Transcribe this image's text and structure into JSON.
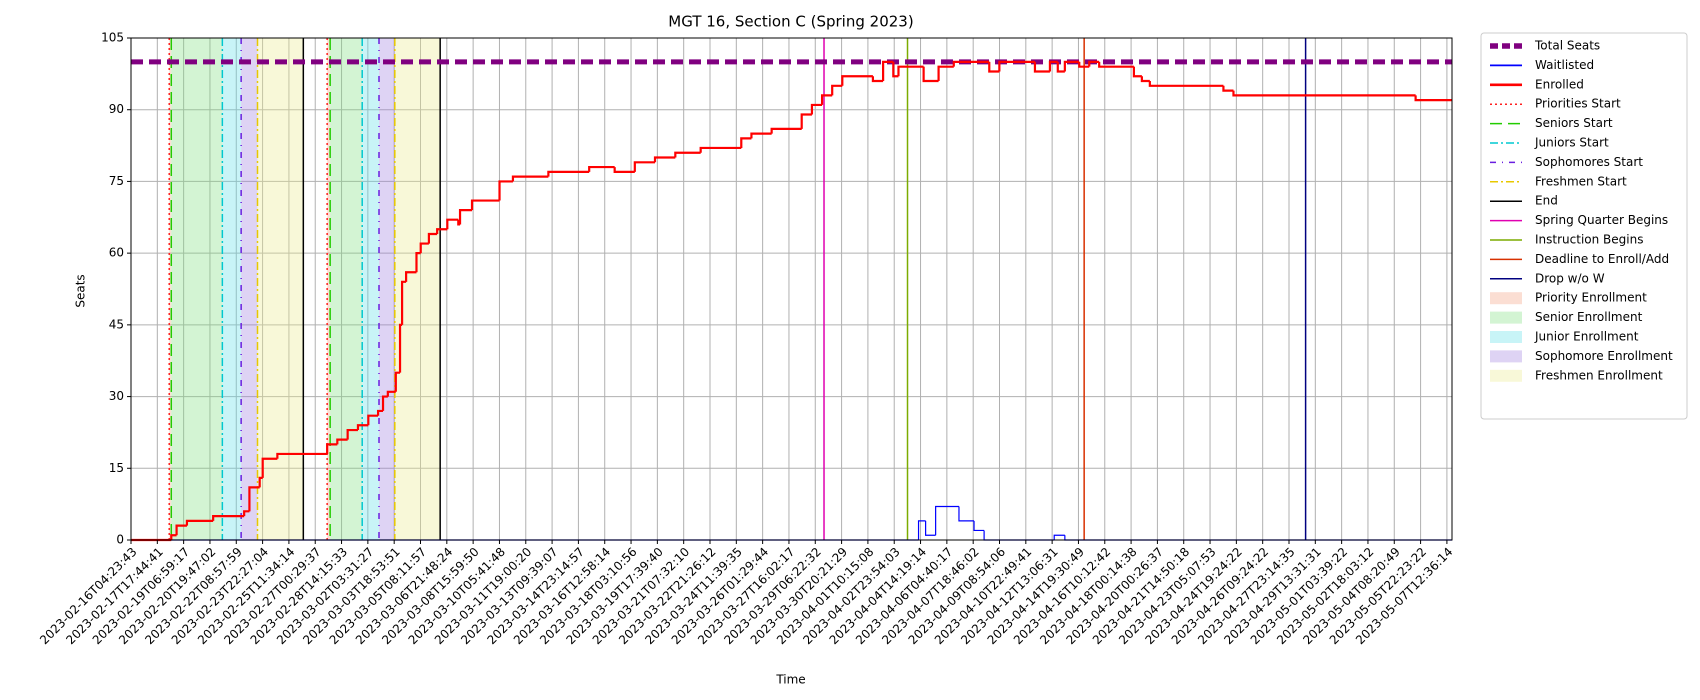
{
  "chart_data": {
    "type": "line",
    "title": "MGT 16, Section C (Spring 2023)",
    "xlabel": "Time",
    "ylabel": "Seats",
    "grid": true,
    "legend": "outside right",
    "xlim": [
      "2023-02-16T04:23:43",
      "2023-05-07T20:00:00"
    ],
    "ylim": [
      0,
      105
    ],
    "yticks": [
      0,
      15,
      30,
      45,
      60,
      75,
      90,
      105
    ],
    "xticks": [
      "2023-02-16T04:23:43",
      "2023-02-17T17:44:41",
      "2023-02-19T06:59:17",
      "2023-02-20T19:47:02",
      "2023-02-22T08:57:59",
      "2023-02-23T22:27:04",
      "2023-02-25T11:34:14",
      "2023-02-27T00:29:37",
      "2023-02-28T14:15:33",
      "2023-03-02T03:31:27",
      "2023-03-03T18:53:51",
      "2023-03-05T08:11:57",
      "2023-03-06T21:48:24",
      "2023-03-08T15:59:50",
      "2023-03-10T05:41:48",
      "2023-03-11T19:00:20",
      "2023-03-13T09:39:07",
      "2023-03-14T23:14:57",
      "2023-03-16T12:58:14",
      "2023-03-18T03:10:56",
      "2023-03-19T17:39:40",
      "2023-03-21T07:32:10",
      "2023-03-22T21:26:12",
      "2023-03-24T11:39:35",
      "2023-03-26T01:29:44",
      "2023-03-27T16:02:17",
      "2023-03-29T06:22:32",
      "2023-03-30T20:21:29",
      "2023-04-01T10:15:08",
      "2023-04-02T23:54:03",
      "2023-04-04T14:19:14",
      "2023-04-06T04:40:17",
      "2023-04-07T18:46:02",
      "2023-04-09T08:54:06",
      "2023-04-10T22:49:41",
      "2023-04-12T13:06:31",
      "2023-04-14T19:30:49",
      "2023-04-16T10:12:42",
      "2023-04-18T00:14:38",
      "2023-04-20T00:26:37",
      "2023-04-21T14:50:18",
      "2023-04-23T05:07:53",
      "2023-04-24T19:24:22",
      "2023-04-26T09:24:22",
      "2023-04-27T23:14:35",
      "2023-04-29T13:31:31",
      "2023-05-01T03:39:22",
      "2023-05-02T18:03:12",
      "2023-05-04T08:20:49",
      "2023-05-05T22:23:22",
      "2023-05-07T12:36:14"
    ],
    "series": [
      {
        "name": "Total Seats",
        "color": "#800080",
        "width": 5,
        "dash": "dashed",
        "x": [
          "2023-02-16T04:23:43",
          "2023-05-07T20:00:00"
        ],
        "values": [
          100,
          100
        ]
      },
      {
        "name": "Waitlisted",
        "color": "#0000ff",
        "width": 1.2,
        "dash": "solid",
        "x": [
          "2023-02-16T04:23:43",
          "2023-04-04T11:24",
          "2023-04-04T21:42",
          "2023-04-05T12:18",
          "2023-04-06T22:12",
          "2023-04-07T20:00",
          "2023-04-08T10:36",
          "2023-04-12T17:24",
          "2023-04-13T15:24",
          "2023-05-07T20:00"
        ],
        "values": [
          0,
          4,
          1,
          7,
          4,
          2,
          0,
          1,
          0,
          0
        ]
      },
      {
        "name": "Enrolled",
        "color": "#ff0000",
        "width": 2.2,
        "dash": "solid",
        "x": [
          "2023-02-16T04:23:43",
          "2023-02-18T13:30",
          "2023-02-18T21:00",
          "2023-02-19T11:36",
          "2023-02-21T00:18",
          "2023-02-22T20:12",
          "2023-02-23T03:42",
          "2023-02-23T18:18",
          "2023-02-23T22:36",
          "2023-02-24T19:18",
          "2023-02-27T17:36",
          "2023-02-28T08:12",
          "2023-02-28T22:54",
          "2023-03-01T13:30",
          "2023-03-02T04:12",
          "2023-03-02T18:48",
          "2023-03-03T02:12",
          "2023-03-03T09:24",
          "2023-03-03T21:12",
          "2023-03-04T03:12",
          "2023-03-04T06:06",
          "2023-03-04T11:48",
          "2023-03-05T02:30",
          "2023-03-05T08:30",
          "2023-03-05T20:12",
          "2023-03-06T08:00",
          "2023-03-06T22:36",
          "2023-03-07T16:12",
          "2023-03-07T19:00",
          "2023-03-08T14:12",
          "2023-03-10T05:48",
          "2023-03-11T00:48",
          "2023-03-13T04:12",
          "2023-03-15T14:42",
          "2023-03-17T03:24",
          "2023-03-18T08:42",
          "2023-03-19T14:12",
          "2023-03-20T19:30",
          "2023-03-22T08:00",
          "2023-03-24T18:48",
          "2023-03-25T09:24",
          "2023-03-26T14:42",
          "2023-03-28T10:36",
          "2023-03-29T01:30",
          "2023-03-29T16:12",
          "2023-03-30T06:48",
          "2023-03-30T21:24",
          "2023-04-01T17:24",
          "2023-04-02T08:00",
          "2023-04-02T22:36",
          "2023-04-03T06:06",
          "2023-04-04T18:48",
          "2023-04-05T16:36",
          "2023-04-06T14:42",
          "2023-04-08T18:06",
          "2023-04-09T08:42",
          "2023-04-11T12:06",
          "2023-04-12T09:54",
          "2023-04-13T00:48",
          "2023-04-13T15:24",
          "2023-04-14T20:42",
          "2023-04-15T11:24",
          "2023-04-16T02:00",
          "2023-04-18T05:24",
          "2023-04-18T20:00",
          "2023-04-19T10:36",
          "2023-04-24T00:36",
          "2023-04-24T15:12",
          "2023-05-05T15:12",
          "2023-05-07T20:00"
        ],
        "values": [
          0,
          1,
          3,
          4,
          5,
          6,
          11,
          13,
          17,
          18,
          20,
          21,
          23,
          24,
          26,
          27,
          30,
          31,
          35,
          45,
          54,
          56,
          60,
          62,
          64,
          65,
          67,
          66,
          69,
          71,
          75,
          76,
          77,
          78,
          77,
          79,
          80,
          81,
          82,
          84,
          85,
          86,
          89,
          91,
          93,
          95,
          97,
          96,
          100,
          97,
          99,
          96,
          99,
          100,
          98,
          100,
          98,
          100,
          98,
          100,
          99,
          100,
          99,
          97,
          96,
          95,
          94,
          93,
          92,
          92
        ]
      }
    ],
    "vlines": [
      {
        "name": "Priorities Start",
        "color": "#ff2020",
        "dash": "dotted",
        "x": [
          "2023-02-18T10:36",
          "2023-02-27T17:36"
        ]
      },
      {
        "name": "Seniors Start",
        "color": "#22cc00",
        "dash": "dashed",
        "x": [
          "2023-02-18T13:30",
          "2023-02-27T21:54"
        ]
      },
      {
        "name": "Juniors Start",
        "color": "#00c8d0",
        "dash": "dashdot",
        "x": [
          "2023-02-21T13:18",
          "2023-03-01T19:30"
        ]
      },
      {
        "name": "Sophomores Start",
        "color": "#6a1ee0",
        "dash": "loosedot",
        "x": [
          "2023-02-22T15:54",
          "2023-03-02T20:12"
        ]
      },
      {
        "name": "Freshmen Start",
        "color": "#e8c800",
        "dash": "dashdot",
        "x": [
          "2023-02-23T15:12",
          "2023-03-03T19:48"
        ]
      },
      {
        "name": "End",
        "color": "#000000",
        "dash": "solid",
        "x": [
          "2023-02-26T07:48",
          "2023-03-06T12:18"
        ]
      },
      {
        "name": "Spring Quarter Begins",
        "color": "#e000b0",
        "dash": "solid",
        "x": [
          "2023-03-29T19:00"
        ]
      },
      {
        "name": "Instruction Begins",
        "color": "#7cac00",
        "dash": "solid",
        "x": [
          "2023-04-03T19:18"
        ]
      },
      {
        "name": "Deadline to Enroll/Add",
        "color": "#d83000",
        "dash": "solid",
        "x": [
          "2023-04-15T03:54"
        ]
      },
      {
        "name": "Drop w/o W",
        "color": "#000080",
        "dash": "solid",
        "x": [
          "2023-04-28T23:24"
        ]
      }
    ],
    "spans": [
      {
        "name": "Priority Enrollment",
        "color": "#f4a080",
        "ranges": [
          [
            "2023-02-18T10:36",
            "2023-02-18T13:30"
          ],
          [
            "2023-02-27T17:36",
            "2023-02-27T21:54"
          ]
        ]
      },
      {
        "name": "Senior Enrollment",
        "color": "#80e080",
        "ranges": [
          [
            "2023-02-18T13:30",
            "2023-02-21T13:18"
          ],
          [
            "2023-02-27T21:54",
            "2023-03-01T19:30"
          ]
        ]
      },
      {
        "name": "Junior Enrollment",
        "color": "#60e0e8",
        "ranges": [
          [
            "2023-02-21T13:18",
            "2023-02-22T15:54"
          ],
          [
            "2023-03-01T19:30",
            "2023-03-02T20:12"
          ]
        ]
      },
      {
        "name": "Sophomore Enrollment",
        "color": "#a080e0",
        "ranges": [
          [
            "2023-02-22T15:54",
            "2023-02-23T15:12"
          ],
          [
            "2023-03-02T20:12",
            "2023-03-03T19:48"
          ]
        ]
      },
      {
        "name": "Freshmen Enrollment",
        "color": "#eaea90",
        "ranges": [
          [
            "2023-02-23T15:12",
            "2023-02-26T07:48"
          ],
          [
            "2023-03-03T19:48",
            "2023-03-06T12:18"
          ]
        ]
      }
    ]
  }
}
